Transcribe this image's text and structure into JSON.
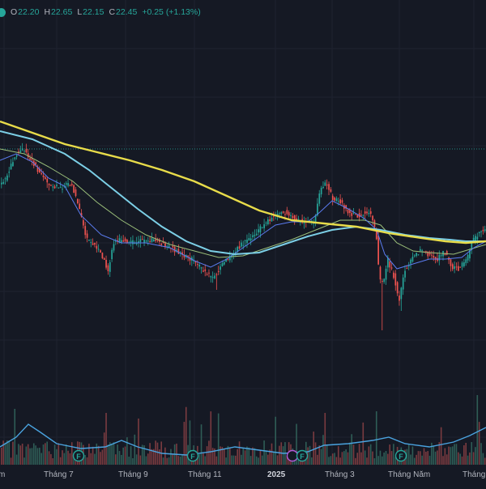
{
  "ohlc": {
    "open_key": "O",
    "open": "22.20",
    "high_key": "H",
    "high": "22.65",
    "low_key": "L",
    "low": "22.15",
    "close_key": "C",
    "close": "22.45",
    "change": "+0.25 (+1.13%)"
  },
  "time_axis": [
    "m",
    "Tháng 7",
    "Tháng 9",
    "Tháng 11",
    "2025",
    "Tháng 3",
    "Tháng Năm",
    "Tháng"
  ],
  "event_markers": [
    "F",
    "F",
    "F",
    "F",
    "F"
  ],
  "colors": {
    "background": "#151924",
    "up": "#26a69a",
    "down": "#ef5350",
    "ma_yellow": "#e8dc4a",
    "ma_cyan": "#7ccfe6",
    "ma_blue": "#5b7cf0",
    "ma_green": "#9bbf7a",
    "volume_line": "#4aa3df",
    "event_marker": "#26a69a",
    "dividend_marker": "#b45ad8"
  },
  "chart_data": {
    "type": "candlestick",
    "title": "",
    "x": [
      "m",
      "Tháng 7",
      "Tháng 9",
      "Tháng 11",
      "2025",
      "Tháng 3",
      "Tháng Năm",
      "Tháng"
    ],
    "series": [
      {
        "name": "",
        "values": [
          24.8,
          22.6,
          22.8,
          21.4,
          24.0,
          24.7,
          22.1,
          23.2
        ]
      },
      {
        "name": "",
        "values": [
          25.6,
          24.7,
          23.8,
          23.1,
          23.2,
          23.7,
          23.0,
          22.6
        ]
      }
    ],
    "last_close": 22.45,
    "grid": true,
    "legend": "none"
  }
}
